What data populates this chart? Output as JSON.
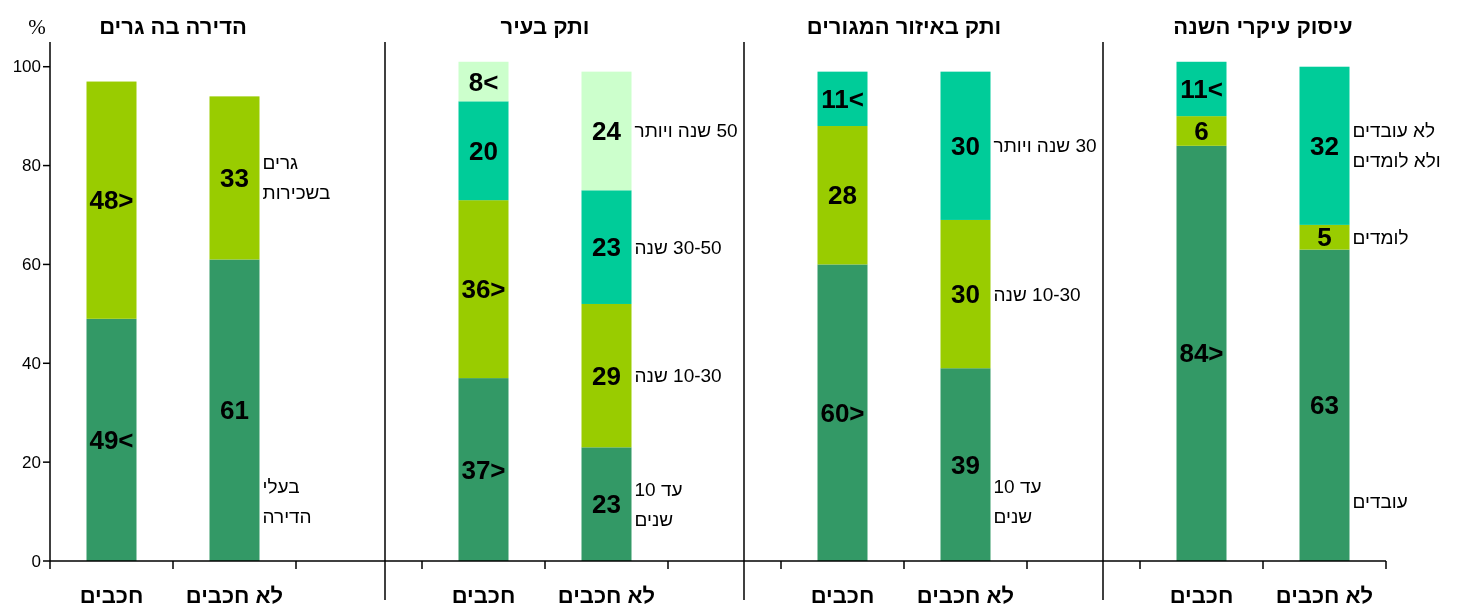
{
  "chart_data": [
    {
      "type": "bar",
      "title": "הדירה בה גרים",
      "ylabel": "%",
      "categories": [
        "חכבים",
        "לא חכבים"
      ],
      "stacked": true,
      "ylim": [
        0,
        105
      ],
      "yticks": [
        0,
        20,
        40,
        60,
        80,
        100
      ],
      "series": [
        {
          "name": "בעלי\nהדירה",
          "color": "#339966",
          "values": [
            49,
            61
          ],
          "value_labels": [
            "49<",
            "61"
          ]
        },
        {
          "name": "גרים\nבשכירות",
          "color": "#99cc00",
          "values": [
            48,
            33
          ],
          "value_labels": [
            "48>",
            "33"
          ]
        }
      ]
    },
    {
      "type": "bar",
      "title": "ותק בעיר",
      "categories": [
        "חכבים",
        "לא חכבים"
      ],
      "stacked": true,
      "ylim": [
        0,
        105
      ],
      "tick_labels": "x",
      "series": [
        {
          "name": "עד 10\nשנים",
          "color": "#339966",
          "values": [
            37,
            23
          ],
          "value_labels": [
            "37>",
            "23"
          ]
        },
        {
          "name": "10-30 שנה",
          "color": "#99cc00",
          "values": [
            36,
            29
          ],
          "value_labels": [
            "36>",
            "29"
          ]
        },
        {
          "name": "30-50 שנה",
          "color": "#00cc99",
          "values": [
            20,
            23
          ],
          "value_labels": [
            "20",
            "23"
          ]
        },
        {
          "name": "50 שנה ויותר",
          "color": "#ccffcc",
          "values": [
            8,
            24
          ],
          "value_labels": [
            "8<",
            "24"
          ]
        }
      ]
    },
    {
      "type": "bar",
      "title": "ותק באיזור המגורים",
      "categories": [
        "חכבים",
        "לא חכבים"
      ],
      "stacked": true,
      "ylim": [
        0,
        105
      ],
      "tick_labels": "x",
      "series": [
        {
          "name": "עד 10\nשנים",
          "color": "#339966",
          "values": [
            60,
            39
          ],
          "value_labels": [
            "60>",
            "39"
          ]
        },
        {
          "name": "10-30 שנה",
          "color": "#99cc00",
          "values": [
            28,
            30
          ],
          "value_labels": [
            "28",
            "30"
          ]
        },
        {
          "name": "30 שנה ויותר",
          "color": "#00cc99",
          "values": [
            11,
            30
          ],
          "value_labels": [
            "11<",
            "30"
          ]
        }
      ]
    },
    {
      "type": "bar",
      "title": "עיסוק עיקרי השנה",
      "categories": [
        "חכבים",
        "לא חכבים"
      ],
      "stacked": true,
      "ylim": [
        0,
        105
      ],
      "tick_labels": "x",
      "series": [
        {
          "name": "עובדים",
          "color": "#339966",
          "values": [
            84,
            63
          ],
          "value_labels": [
            "84>",
            "63"
          ]
        },
        {
          "name": "לומדים",
          "color": "#99cc00",
          "values": [
            6,
            5
          ],
          "value_labels": [
            "6",
            "5"
          ]
        },
        {
          "name": "לא עובדים\nולא לומדים",
          "color": "#00cc99",
          "values": [
            11,
            32
          ],
          "value_labels": [
            "11<",
            "32"
          ]
        }
      ]
    }
  ]
}
